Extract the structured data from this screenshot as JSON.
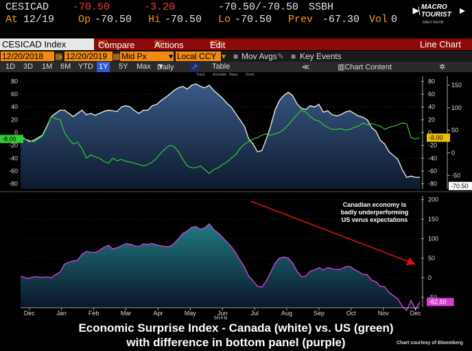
{
  "quote": {
    "ticker": "CESICAD",
    "last": "-70.50",
    "change": "-3.20",
    "bid_ask": "-70.50/-70.50",
    "source": "SSBH",
    "at_label": "At",
    "date": "12/19",
    "open_label": "Op",
    "open": "-70.50",
    "high_label": "Hi",
    "high": "-70.50",
    "low_label": "Lo",
    "low": "-70.50",
    "prev_label": "Prev",
    "prev": "-67.30",
    "vol_label": "Vol",
    "vol": "0"
  },
  "logo": {
    "line1": "MACRO",
    "line2": "TOURIST",
    "line3": "DAILY KEVIN"
  },
  "toolbar": {
    "security": "CESICAD Index",
    "compare_num": "96)",
    "compare": "Compare",
    "actions_num": "96)",
    "actions": "Actions",
    "edit_num": "97)",
    "edit": "Edit",
    "view": "Line Chart"
  },
  "settings": {
    "start_date": "12/20/2018",
    "end_date": "12/20/2019",
    "price_field": "Mid Px",
    "currency": "Local CCY",
    "mov_avgs": "Mov Avgs",
    "key_events": "Key Events"
  },
  "ranges": [
    "1D",
    "3D",
    "1M",
    "6M",
    "YTD",
    "1Y",
    "5Y",
    "Max"
  ],
  "selected_range": "1Y",
  "frequency": "Daily",
  "table_label": "Table",
  "chart_content_label": "Chart Content",
  "chart_tools": [
    "Track",
    "Annotate",
    "News",
    "Zoom"
  ],
  "colors": {
    "canada": "#e8e8e8",
    "us": "#33cc33",
    "diff": "#d63fd6",
    "bar_red": "#8b0b0b",
    "orange": "#f08a10",
    "annotation_arrow": "#e01010"
  },
  "annotation": {
    "line1": "Canadian economy is",
    "line2": "badly underperforming",
    "line3": "US verus expectations"
  },
  "caption": {
    "line1": "Economic Surprise Index - Canada (white) vs. US (green)",
    "line2": "with difference in bottom panel (purple)",
    "credit": "Chart courtesy of Bloomberg"
  },
  "chart_data": [
    {
      "type": "line",
      "x_ticks": [
        "Dec",
        "Jan",
        "Feb",
        "Mar",
        "Apr",
        "May",
        "Jun",
        "Jul",
        "Aug",
        "Sep",
        "Oct",
        "Nov",
        "Dec"
      ],
      "year_label": "2019",
      "left_axis": {
        "ticks": [
          80,
          60,
          40,
          20,
          0,
          -20,
          -40,
          -60,
          -80
        ],
        "ylim": [
          -88,
          88
        ]
      },
      "right_axis_inner": {
        "ticks": [
          80,
          60,
          40,
          20,
          0,
          -20,
          -40,
          -60,
          -80
        ],
        "ylim": [
          -88,
          88
        ]
      },
      "right_axis_outer": {
        "ticks": [
          150,
          100,
          50,
          0,
          -50
        ],
        "ylim": [
          -80,
          170
        ]
      },
      "series": [
        {
          "name": "Canada",
          "last_label": "-70.50",
          "x": [
            0,
            4,
            8,
            12,
            16,
            20,
            24,
            28,
            32,
            36,
            40,
            44,
            48,
            52,
            56,
            60,
            64,
            68,
            72,
            76,
            80,
            84,
            88,
            92,
            96,
            100,
            104,
            108,
            112,
            116,
            120,
            124,
            128,
            132,
            136,
            140,
            144,
            148,
            152,
            156,
            160,
            164,
            168,
            172,
            176,
            180,
            184,
            188,
            192,
            196,
            200,
            204,
            208,
            212,
            216,
            220,
            224,
            228,
            232,
            236,
            240,
            244,
            248,
            252,
            256,
            260,
            264,
            268,
            272,
            276,
            280,
            284,
            288,
            292,
            296,
            300,
            304,
            308,
            312,
            316,
            320,
            324,
            328,
            332,
            336,
            340,
            344,
            348,
            352,
            356,
            360,
            364
          ],
          "values": [
            -5,
            -10,
            -14,
            -12,
            -8,
            -4,
            10,
            25,
            30,
            35,
            35,
            30,
            25,
            30,
            35,
            28,
            30,
            27,
            30,
            33,
            35,
            34,
            33,
            40,
            42,
            40,
            34,
            30,
            35,
            35,
            42,
            44,
            50,
            55,
            60,
            66,
            70,
            72,
            68,
            74,
            76,
            72,
            70,
            74,
            66,
            60,
            54,
            46,
            40,
            30,
            20,
            10,
            -10,
            -18,
            -30,
            -28,
            -10,
            10,
            35,
            50,
            58,
            63,
            58,
            45,
            38,
            36,
            42,
            40,
            44,
            32,
            34,
            28,
            26,
            28,
            32,
            34,
            30,
            26,
            24,
            20,
            8,
            2,
            -12,
            -18,
            -30,
            -36,
            -42,
            -58,
            -70,
            -68,
            -70,
            -70
          ]
        },
        {
          "name": "US",
          "last_label": "-8.00",
          "x": [
            0,
            4,
            8,
            12,
            16,
            20,
            24,
            28,
            32,
            36,
            40,
            44,
            48,
            52,
            56,
            60,
            64,
            68,
            72,
            76,
            80,
            84,
            88,
            92,
            96,
            100,
            104,
            108,
            112,
            116,
            120,
            124,
            128,
            132,
            136,
            140,
            144,
            148,
            152,
            156,
            160,
            164,
            168,
            172,
            176,
            180,
            184,
            188,
            192,
            196,
            200,
            204,
            208,
            212,
            216,
            220,
            224,
            228,
            232,
            236,
            240,
            244,
            248,
            252,
            256,
            260,
            264,
            268,
            272,
            276,
            280,
            284,
            288,
            292,
            296,
            300,
            304,
            308,
            312,
            316,
            320,
            324,
            328,
            332,
            336,
            340,
            344,
            348,
            352,
            356,
            360,
            364
          ],
          "values": [
            -10,
            -10,
            -12,
            -15,
            -10,
            -5,
            8,
            25,
            22,
            20,
            0,
            -10,
            -18,
            -15,
            -25,
            -40,
            -35,
            -38,
            -40,
            -45,
            -48,
            -40,
            -44,
            -42,
            -45,
            -46,
            -48,
            -50,
            -52,
            -50,
            -46,
            -40,
            -32,
            -25,
            -20,
            -22,
            -30,
            -42,
            -52,
            -55,
            -55,
            -52,
            -58,
            -64,
            -58,
            -55,
            -50,
            -46,
            -40,
            -35,
            -25,
            -18,
            -14,
            -10,
            -8,
            -4,
            -2,
            -4,
            -2,
            0,
            5,
            12,
            20,
            28,
            35,
            32,
            25,
            20,
            18,
            12,
            8,
            5,
            5,
            6,
            4,
            5,
            8,
            10,
            15,
            12,
            14,
            12,
            10,
            5,
            8,
            10,
            12,
            15,
            14,
            -8,
            -10,
            -8
          ]
        }
      ]
    },
    {
      "type": "area",
      "series": [
        {
          "name": "Difference",
          "last_label": "-62.50",
          "x": [
            0,
            4,
            8,
            12,
            16,
            20,
            24,
            28,
            32,
            36,
            40,
            44,
            48,
            52,
            56,
            60,
            64,
            68,
            72,
            76,
            80,
            84,
            88,
            92,
            96,
            100,
            104,
            108,
            112,
            116,
            120,
            124,
            128,
            132,
            136,
            140,
            144,
            148,
            152,
            156,
            160,
            164,
            168,
            172,
            176,
            180,
            184,
            188,
            192,
            196,
            200,
            204,
            208,
            212,
            216,
            220,
            224,
            228,
            232,
            236,
            240,
            244,
            248,
            252,
            256,
            260,
            264,
            268,
            272,
            276,
            280,
            284,
            288,
            292,
            296,
            300,
            304,
            308,
            312,
            316,
            320,
            324,
            328,
            332,
            336,
            340,
            344,
            348,
            352,
            356,
            360,
            364
          ],
          "values": [
            5,
            0,
            -2,
            3,
            2,
            1,
            2,
            0,
            8,
            15,
            35,
            40,
            43,
            45,
            60,
            68,
            65,
            65,
            70,
            78,
            83,
            74,
            77,
            82,
            87,
            86,
            82,
            80,
            87,
            85,
            88,
            84,
            82,
            80,
            80,
            88,
            100,
            114,
            120,
            129,
            131,
            124,
            128,
            138,
            124,
            115,
            104,
            92,
            80,
            65,
            45,
            28,
            4,
            -8,
            -22,
            -24,
            -8,
            14,
            37,
            50,
            53,
            51,
            38,
            17,
            3,
            4,
            17,
            20,
            26,
            20,
            26,
            23,
            21,
            22,
            28,
            29,
            22,
            16,
            9,
            8,
            -6,
            -10,
            -22,
            -23,
            -38,
            -46,
            -54,
            -73,
            -84,
            -58,
            -82,
            -62
          ]
        }
      ],
      "right_axis": {
        "ticks": [
          200,
          150,
          100,
          50,
          0,
          -50
        ],
        "ylim": [
          -75,
          210
        ]
      }
    }
  ]
}
